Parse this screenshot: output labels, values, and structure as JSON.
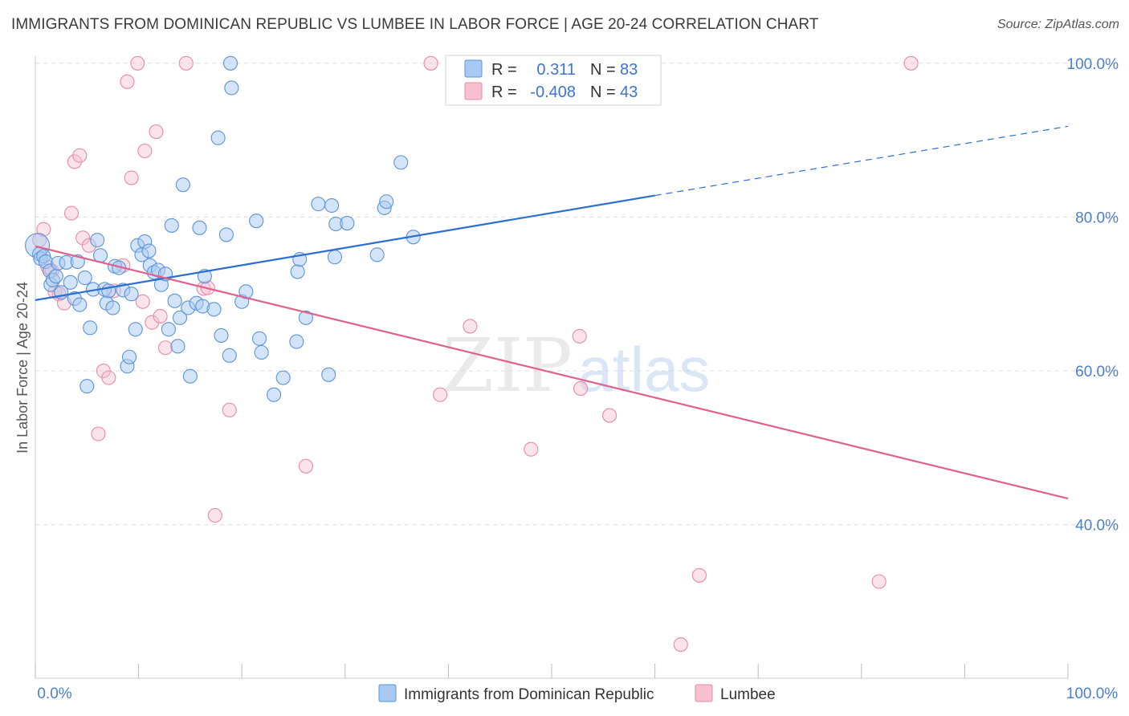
{
  "title": "IMMIGRANTS FROM DOMINICAN REPUBLIC VS LUMBEE IN LABOR FORCE | AGE 20-24 CORRELATION CHART",
  "source": "Source: ZipAtlas.com",
  "watermark": {
    "zip": "ZIP",
    "atlas": "atlas"
  },
  "colors": {
    "blue_fill": "#a9c9f2",
    "blue_stroke": "#5b93d9",
    "blue_line": "#2a6fd0",
    "pink_fill": "#f7c0d0",
    "pink_stroke": "#e88aa8",
    "pink_line": "#e0608c",
    "grid": "#dcdcdc",
    "tick_label": "#4a7fd0"
  },
  "legend": {
    "rows": [
      {
        "r_label": "R =",
        "r_value": "0.311",
        "n_label": "N =",
        "n_value": "83",
        "series": "blue"
      },
      {
        "r_label": "R =",
        "r_value": "-0.408",
        "n_label": "N =",
        "n_value": "43",
        "series": "pink"
      }
    ]
  },
  "chart_data": {
    "type": "scatter",
    "ylabel": "In Labor Force | Age 20-24",
    "xlim": [
      0,
      100
    ],
    "ylim": [
      20,
      102
    ],
    "x_tick_labels": [
      "0.0%",
      "100.0%"
    ],
    "y_ticks": [
      40,
      60,
      80,
      100
    ],
    "y_tick_labels": [
      "40.0%",
      "60.0%",
      "80.0%",
      "100.0%"
    ],
    "grid": true,
    "legend_position": "top-center",
    "series": [
      {
        "name": "Immigrants from Dominican Republic",
        "color": "#a9c9f2",
        "points": [
          [
            0.2,
            76.3
          ],
          [
            0.4,
            75.2
          ],
          [
            0.5,
            74.6
          ],
          [
            0.8,
            74.9
          ],
          [
            1.0,
            74.2
          ],
          [
            1.4,
            73.0
          ],
          [
            1.5,
            71.2
          ],
          [
            1.7,
            71.8
          ],
          [
            2.0,
            72.3
          ],
          [
            2.2,
            74.0
          ],
          [
            2.5,
            70.2
          ],
          [
            3.0,
            74.1
          ],
          [
            3.4,
            71.5
          ],
          [
            3.8,
            69.4
          ],
          [
            4.1,
            74.2
          ],
          [
            4.3,
            68.6
          ],
          [
            4.8,
            72.1
          ],
          [
            5.0,
            58.0
          ],
          [
            5.3,
            65.6
          ],
          [
            5.6,
            70.6
          ],
          [
            6.0,
            77.0
          ],
          [
            6.3,
            75.0
          ],
          [
            6.7,
            70.6
          ],
          [
            6.9,
            68.8
          ],
          [
            7.1,
            70.4
          ],
          [
            7.5,
            68.2
          ],
          [
            7.7,
            73.6
          ],
          [
            8.1,
            73.4
          ],
          [
            8.5,
            70.5
          ],
          [
            8.9,
            60.6
          ],
          [
            9.1,
            61.8
          ],
          [
            9.3,
            70.0
          ],
          [
            9.7,
            65.4
          ],
          [
            9.9,
            76.3
          ],
          [
            10.3,
            75.1
          ],
          [
            10.6,
            76.8
          ],
          [
            11.0,
            75.6
          ],
          [
            11.1,
            73.7
          ],
          [
            11.5,
            72.8
          ],
          [
            11.9,
            73.1
          ],
          [
            12.2,
            71.2
          ],
          [
            12.6,
            72.6
          ],
          [
            12.9,
            65.4
          ],
          [
            13.2,
            78.9
          ],
          [
            13.5,
            69.1
          ],
          [
            13.8,
            63.2
          ],
          [
            14.0,
            66.9
          ],
          [
            14.3,
            84.2
          ],
          [
            14.8,
            68.2
          ],
          [
            15.0,
            59.3
          ],
          [
            15.6,
            68.8
          ],
          [
            15.9,
            78.6
          ],
          [
            16.2,
            68.4
          ],
          [
            16.4,
            72.3
          ],
          [
            17.3,
            68.0
          ],
          [
            17.7,
            90.3
          ],
          [
            18.0,
            64.6
          ],
          [
            18.5,
            77.7
          ],
          [
            18.8,
            62.0
          ],
          [
            18.9,
            100.0
          ],
          [
            19.0,
            96.8
          ],
          [
            20.0,
            69.0
          ],
          [
            20.4,
            70.3
          ],
          [
            21.4,
            79.5
          ],
          [
            21.7,
            64.2
          ],
          [
            21.9,
            62.4
          ],
          [
            23.1,
            56.9
          ],
          [
            24.0,
            59.1
          ],
          [
            25.3,
            63.8
          ],
          [
            25.4,
            72.9
          ],
          [
            25.6,
            74.5
          ],
          [
            26.2,
            66.9
          ],
          [
            27.4,
            81.7
          ],
          [
            28.4,
            59.5
          ],
          [
            28.7,
            81.5
          ],
          [
            29.0,
            74.8
          ],
          [
            29.1,
            79.1
          ],
          [
            30.2,
            79.2
          ],
          [
            33.1,
            75.1
          ],
          [
            33.8,
            81.2
          ],
          [
            34.0,
            82.0
          ],
          [
            35.4,
            87.1
          ],
          [
            36.6,
            77.4
          ]
        ],
        "trend": {
          "x0": 0,
          "y0": 69.2,
          "x1": 60,
          "y1": 82.8,
          "dash_to_x": 100,
          "dash_to_y": 91.8
        }
      },
      {
        "name": "Lumbee",
        "color": "#f7c0d0",
        "points": [
          [
            0.4,
            77.0
          ],
          [
            0.8,
            78.4
          ],
          [
            1.2,
            73.5
          ],
          [
            1.6,
            73.0
          ],
          [
            1.9,
            70.3
          ],
          [
            2.3,
            70.0
          ],
          [
            2.8,
            68.8
          ],
          [
            3.5,
            80.5
          ],
          [
            3.8,
            87.2
          ],
          [
            4.3,
            88.0
          ],
          [
            4.6,
            77.3
          ],
          [
            5.2,
            76.3
          ],
          [
            6.1,
            51.8
          ],
          [
            6.6,
            60.0
          ],
          [
            7.1,
            59.1
          ],
          [
            7.6,
            70.4
          ],
          [
            8.5,
            73.7
          ],
          [
            8.9,
            97.6
          ],
          [
            9.3,
            85.1
          ],
          [
            9.9,
            100.0
          ],
          [
            10.4,
            69.0
          ],
          [
            10.6,
            88.6
          ],
          [
            11.3,
            66.3
          ],
          [
            11.7,
            91.1
          ],
          [
            12.1,
            67.1
          ],
          [
            12.6,
            63.0
          ],
          [
            14.6,
            100.0
          ],
          [
            16.3,
            70.7
          ],
          [
            16.7,
            70.8
          ],
          [
            17.4,
            41.2
          ],
          [
            18.8,
            54.9
          ],
          [
            26.2,
            47.6
          ],
          [
            38.3,
            100.0
          ],
          [
            39.2,
            56.9
          ],
          [
            42.1,
            65.8
          ],
          [
            48.0,
            49.8
          ],
          [
            52.7,
            64.5
          ],
          [
            52.8,
            57.7
          ],
          [
            55.6,
            54.2
          ],
          [
            62.5,
            24.4
          ],
          [
            64.3,
            33.4
          ],
          [
            81.7,
            32.6
          ],
          [
            84.8,
            100.0
          ]
        ],
        "trend": {
          "x0": 0,
          "y0": 76.2,
          "x1": 100,
          "y1": 43.4
        }
      }
    ]
  }
}
